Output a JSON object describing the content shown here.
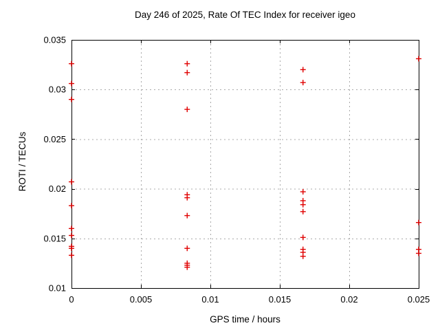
{
  "chart_data": {
    "type": "scatter",
    "title": "Day 246 of 2025, Rate Of TEC Index for receiver igeo",
    "xlabel": "GPS time / hours",
    "ylabel": "ROTI / TECUs",
    "xlim": [
      0,
      0.025
    ],
    "ylim": [
      0.01,
      0.035
    ],
    "xticks": {
      "values": [
        0,
        0.005,
        0.01,
        0.015,
        0.02,
        0.025
      ],
      "labels": [
        "0",
        "0.005",
        "0.01",
        "0.015",
        "0.02",
        "0.025"
      ]
    },
    "yticks": {
      "values": [
        0.01,
        0.015,
        0.02,
        0.025,
        0.03,
        0.035
      ],
      "labels": [
        "0.01",
        "0.015",
        "0.02",
        "0.025",
        "0.03",
        "0.035"
      ]
    },
    "grid": {
      "style": "dotted",
      "color": "#a8a8a8"
    },
    "border_color": "#000000",
    "background_color": "#ffffff",
    "legend": "none",
    "marker": {
      "shape": "plus",
      "color": "#e00000",
      "size": 8
    },
    "points": [
      [
        0,
        0.0326
      ],
      [
        0,
        0.0306
      ],
      [
        0,
        0.029
      ],
      [
        0,
        0.0207
      ],
      [
        0,
        0.0183
      ],
      [
        0,
        0.016
      ],
      [
        0,
        0.0153
      ],
      [
        0,
        0.0142
      ],
      [
        0,
        0.014
      ],
      [
        0,
        0.0133
      ],
      [
        0.00833,
        0.0326
      ],
      [
        0.00833,
        0.0317
      ],
      [
        0.00833,
        0.028
      ],
      [
        0.00833,
        0.0194
      ],
      [
        0.00833,
        0.0191
      ],
      [
        0.00833,
        0.0173
      ],
      [
        0.00833,
        0.014
      ],
      [
        0.00833,
        0.0125
      ],
      [
        0.00833,
        0.0123
      ],
      [
        0.00833,
        0.0121
      ],
      [
        0.01667,
        0.032
      ],
      [
        0.01667,
        0.0307
      ],
      [
        0.01667,
        0.0197
      ],
      [
        0.01667,
        0.0188
      ],
      [
        0.01667,
        0.0184
      ],
      [
        0.01667,
        0.0177
      ],
      [
        0.01667,
        0.0151
      ],
      [
        0.01667,
        0.0139
      ],
      [
        0.01667,
        0.0136
      ],
      [
        0.01667,
        0.0132
      ],
      [
        0.025,
        0.0331
      ],
      [
        0.025,
        0.0166
      ],
      [
        0.025,
        0.0139
      ],
      [
        0.025,
        0.0135
      ]
    ]
  }
}
